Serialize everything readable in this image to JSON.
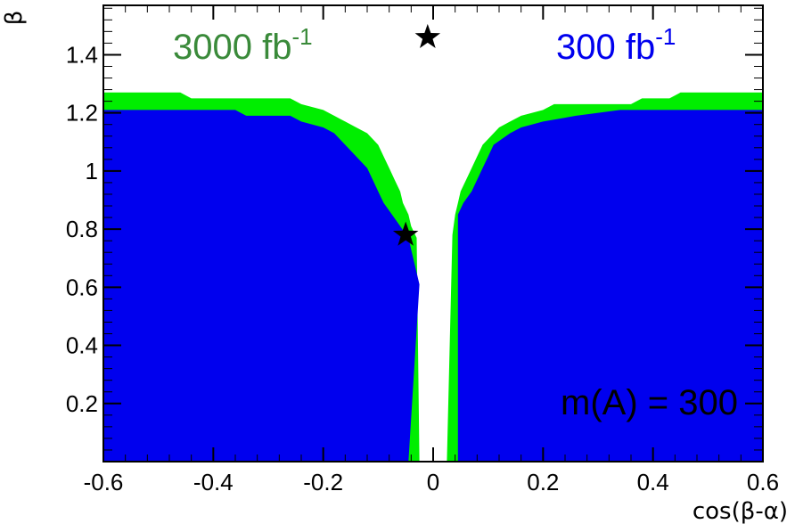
{
  "chart_data": {
    "type": "heatmap",
    "xlabel": "cos(β-α)",
    "ylabel": "β",
    "xlim": [
      -0.6,
      0.6
    ],
    "ylim": [
      0,
      1.57
    ],
    "x_ticks": [
      -0.6,
      -0.4,
      -0.2,
      0,
      0.2,
      0.4,
      0.6
    ],
    "x_tick_labels": [
      "-0.6",
      "-0.4",
      "-0.2",
      "0",
      "0.2",
      "0.4",
      "0.6"
    ],
    "y_ticks": [
      0.2,
      0.4,
      0.6,
      0.8,
      1.0,
      1.2,
      1.4
    ],
    "y_tick_labels": [
      "0.2",
      "0.4",
      "0.6",
      "0.8",
      "1",
      "1.2",
      "1.4"
    ],
    "annotation": "m(A) = 300",
    "colors": {
      "green": "#00ee00",
      "blue": "#0000ee"
    },
    "legend": [
      {
        "label": "3000 fb",
        "exponent": "-1",
        "color": "#3a8a3a"
      },
      {
        "label": "300 fb",
        "exponent": "-1",
        "color": "#0000ee"
      }
    ],
    "series": [
      {
        "name": "3000 fb-1",
        "color": "#00ee00",
        "regions": [
          {
            "side": "left",
            "boundary": [
              [
                -0.6,
                1.27
              ],
              [
                -0.46,
                1.27
              ],
              [
                -0.44,
                1.25
              ],
              [
                -0.26,
                1.25
              ],
              [
                -0.24,
                1.23
              ],
              [
                -0.2,
                1.21
              ],
              [
                -0.18,
                1.19
              ],
              [
                -0.16,
                1.17
              ],
              [
                -0.14,
                1.15
              ],
              [
                -0.12,
                1.13
              ],
              [
                -0.1,
                1.09
              ],
              [
                -0.09,
                1.05
              ],
              [
                -0.08,
                1.01
              ],
              [
                -0.07,
                0.97
              ],
              [
                -0.06,
                0.93
              ],
              [
                -0.055,
                0.89
              ],
              [
                -0.045,
                0.85
              ],
              [
                -0.04,
                0.81
              ],
              [
                -0.03,
                0.77
              ],
              [
                -0.025,
                0
              ]
            ]
          },
          {
            "side": "right",
            "boundary": [
              [
                0.025,
                0
              ],
              [
                0.035,
                0.78
              ],
              [
                0.04,
                0.85
              ],
              [
                0.045,
                0.89
              ],
              [
                0.05,
                0.93
              ],
              [
                0.06,
                0.97
              ],
              [
                0.07,
                1.01
              ],
              [
                0.08,
                1.05
              ],
              [
                0.09,
                1.09
              ],
              [
                0.1,
                1.11
              ],
              [
                0.12,
                1.15
              ],
              [
                0.14,
                1.17
              ],
              [
                0.16,
                1.19
              ],
              [
                0.2,
                1.21
              ],
              [
                0.22,
                1.23
              ],
              [
                0.36,
                1.23
              ],
              [
                0.38,
                1.25
              ],
              [
                0.43,
                1.25
              ],
              [
                0.45,
                1.27
              ],
              [
                0.6,
                1.27
              ]
            ]
          }
        ]
      },
      {
        "name": "300 fb-1",
        "color": "#0000ee",
        "regions": [
          {
            "side": "left",
            "boundary": [
              [
                -0.6,
                1.21
              ],
              [
                -0.36,
                1.21
              ],
              [
                -0.34,
                1.19
              ],
              [
                -0.26,
                1.19
              ],
              [
                -0.24,
                1.17
              ],
              [
                -0.2,
                1.15
              ],
              [
                -0.18,
                1.13
              ],
              [
                -0.16,
                1.09
              ],
              [
                -0.14,
                1.05
              ],
              [
                -0.12,
                1.01
              ],
              [
                -0.11,
                0.97
              ],
              [
                -0.1,
                0.93
              ],
              [
                -0.09,
                0.89
              ],
              [
                -0.075,
                0.85
              ],
              [
                -0.06,
                0.81
              ],
              [
                -0.045,
                0.77
              ],
              [
                -0.04,
                0.73
              ],
              [
                -0.035,
                0.69
              ],
              [
                -0.03,
                0.65
              ],
              [
                -0.025,
                0.61
              ],
              [
                -0.045,
                0
              ]
            ]
          },
          {
            "side": "right",
            "boundary": [
              [
                0.045,
                0
              ],
              [
                0.045,
                0.85
              ],
              [
                0.055,
                0.89
              ],
              [
                0.07,
                0.93
              ],
              [
                0.08,
                0.97
              ],
              [
                0.09,
                1.01
              ],
              [
                0.1,
                1.05
              ],
              [
                0.11,
                1.09
              ],
              [
                0.14,
                1.13
              ],
              [
                0.16,
                1.15
              ],
              [
                0.2,
                1.17
              ],
              [
                0.26,
                1.19
              ],
              [
                0.34,
                1.21
              ],
              [
                0.6,
                1.21
              ]
            ]
          }
        ]
      }
    ],
    "markers": [
      {
        "name": "star",
        "x": -0.01,
        "y": 1.46
      },
      {
        "name": "star",
        "x": -0.05,
        "y": 0.78
      }
    ]
  }
}
